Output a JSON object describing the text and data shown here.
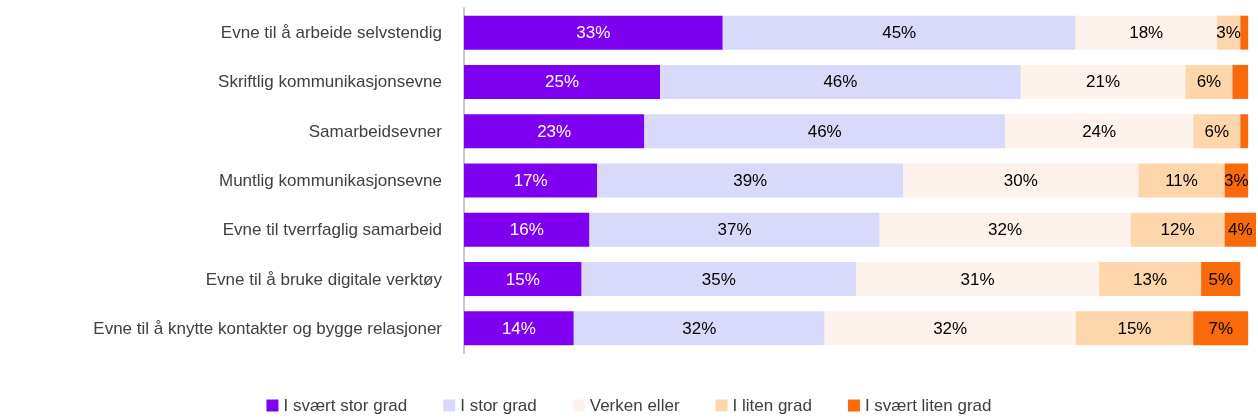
{
  "chart_data": {
    "type": "bar",
    "orientation": "horizontal",
    "stacked": true,
    "legend": "bottom",
    "categories": [
      "Evne til å arbeide selvstendig",
      "Skriftlig kommunikasjonsevne",
      "Samarbeidsevner",
      "Muntlig kommunikasjonsevne",
      "Evne til tverrfaglig samarbeid",
      "Evne til å bruke digitale verktøy",
      "Evne til å knytte kontakter og bygge relasjoner"
    ],
    "series": [
      {
        "name": "I svært stor grad",
        "color": "#7f00f0",
        "values": [
          33,
          25,
          23,
          17,
          16,
          15,
          14
        ],
        "value_labels": [
          "33%",
          "25%",
          "23%",
          "17%",
          "16%",
          "15%",
          "14%"
        ]
      },
      {
        "name": "I stor grad",
        "color": "#d9d9fc",
        "values": [
          45,
          46,
          46,
          39,
          37,
          35,
          32
        ],
        "value_labels": [
          "45%",
          "46%",
          "46%",
          "39%",
          "37%",
          "35%",
          "32%"
        ]
      },
      {
        "name": "Verken eller",
        "color": "#fdf2ec",
        "values": [
          18,
          21,
          24,
          30,
          32,
          31,
          32
        ],
        "value_labels": [
          "18%",
          "21%",
          "24%",
          "30%",
          "32%",
          "31%",
          "32%"
        ]
      },
      {
        "name": "I liten grad",
        "color": "#fdd6ac",
        "values": [
          3,
          6,
          6,
          11,
          12,
          13,
          15
        ],
        "value_labels": [
          "3%",
          "6%",
          "6%",
          "11%",
          "12%",
          "13%",
          "15%"
        ]
      },
      {
        "name": "I svært liten grad",
        "color": "#fb6a0a",
        "values": [
          1,
          2,
          1,
          3,
          4,
          5,
          7
        ],
        "value_labels": [
          null,
          null,
          null,
          "3%",
          "4%",
          "5%",
          "7%"
        ]
      }
    ]
  }
}
